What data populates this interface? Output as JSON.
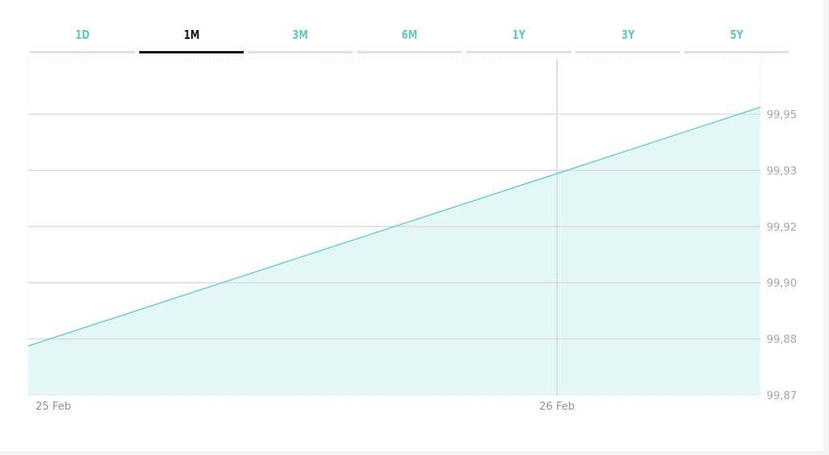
{
  "tabs": [
    {
      "label": "1D",
      "active": false
    },
    {
      "label": "1M",
      "active": true
    },
    {
      "label": "3M",
      "active": false
    },
    {
      "label": "6M",
      "active": false
    },
    {
      "label": "1Y",
      "active": false
    },
    {
      "label": "3Y",
      "active": false
    },
    {
      "label": "5Y",
      "active": false
    }
  ],
  "chart_data": {
    "type": "area",
    "title": "",
    "xlabel": "",
    "ylabel": "",
    "x_ticks": [
      "25 Feb",
      "26 Feb"
    ],
    "y_ticks": [
      "99,95",
      "99,93",
      "99,92",
      "99,90",
      "99,88",
      "99,87"
    ],
    "ylim": [
      99.87,
      99.95
    ],
    "y_axis_position": "right",
    "grid": true,
    "points": [
      {
        "x": "25 Feb 00:00",
        "y": 99.884
      },
      {
        "x": "26 Feb 09:15",
        "y": 99.952
      }
    ],
    "colors": {
      "line": "#6fcfcf",
      "fill": "#e4f7f7",
      "grid": "#d9dde2",
      "crosshair": "#d3d6da"
    }
  }
}
